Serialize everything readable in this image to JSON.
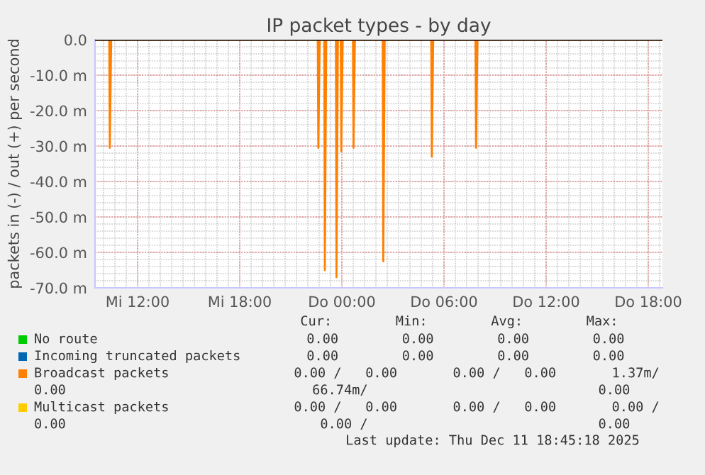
{
  "chart_data": {
    "type": "line",
    "title": "IP packet types - by day",
    "ylabel": "packets in (-) / out (+) per second",
    "xlim": [
      "2025-12-10T09:30",
      "2025-12-11T18:50"
    ],
    "xticks": [
      {
        "value": "2025-12-10T12:00",
        "label": "Mi 12:00"
      },
      {
        "value": "2025-12-10T18:00",
        "label": "Mi 18:00"
      },
      {
        "value": "2025-12-11T00:00",
        "label": "Do 00:00"
      },
      {
        "value": "2025-12-11T06:00",
        "label": "Do 06:00"
      },
      {
        "value": "2025-12-11T12:00",
        "label": "Do 12:00"
      },
      {
        "value": "2025-12-11T18:00",
        "label": "Do 18:00"
      }
    ],
    "ylim": [
      -70,
      0
    ],
    "yticks": [
      {
        "value": 0,
        "label": "0.0"
      },
      {
        "value": -10,
        "label": "-10.0 m"
      },
      {
        "value": -20,
        "label": "-20.0 m"
      },
      {
        "value": -30,
        "label": "-30.0 m"
      },
      {
        "value": -40,
        "label": "-40.0 m"
      },
      {
        "value": -50,
        "label": "-50.0 m"
      },
      {
        "value": -60,
        "label": "-60.0 m"
      },
      {
        "value": -70,
        "label": "-70.0 m"
      }
    ],
    "grid": true,
    "legend": "bottom",
    "ref_lines": [
      {
        "axis": "y",
        "value": 0,
        "color": "#000000"
      }
    ],
    "series": [
      {
        "name": "No route",
        "color": "#00cc00"
      },
      {
        "name": "Incoming truncated packets",
        "color": "#0066b3"
      },
      {
        "name": "Broadcast packets",
        "color": "#ff8000",
        "x": [
          "2025-12-10T09:30",
          "2025-12-10T10:20",
          "2025-12-10T10:22",
          "2025-12-10T10:27",
          "2025-12-10T22:35",
          "2025-12-10T22:37",
          "2025-12-10T22:42",
          "2025-12-10T22:58",
          "2025-12-10T23:00",
          "2025-12-10T23:05",
          "2025-12-10T23:39",
          "2025-12-10T23:41",
          "2025-12-10T23:46",
          "2025-12-10T23:56",
          "2025-12-10T23:58",
          "2025-12-11T00:03",
          "2025-12-11T00:39",
          "2025-12-11T00:41",
          "2025-12-11T00:46",
          "2025-12-11T02:24",
          "2025-12-11T02:26",
          "2025-12-11T02:31",
          "2025-12-11T05:15",
          "2025-12-11T05:17",
          "2025-12-11T05:22",
          "2025-12-11T07:51",
          "2025-12-11T07:53",
          "2025-12-11T07:58",
          "2025-12-11T18:50"
        ],
        "values": [
          0,
          0,
          -30.5,
          0,
          0,
          -30.5,
          0,
          0,
          -65,
          0,
          0,
          -67,
          0,
          0,
          -31.5,
          0,
          0,
          -30.5,
          0,
          0,
          -62.5,
          0,
          0,
          -33,
          0,
          0,
          -30.5,
          0,
          0
        ]
      },
      {
        "name": "Multicast packets",
        "color": "#ffcc00"
      }
    ],
    "annotations": [
      "Cur:        Min:        Avg:        Max:",
      "0.00        0.00        0.00        0.00",
      "0.00        0.00        0.00        0.00",
      "0.00 /   0.00       0.00 /   0.00       1.37m/",
      "0.00                               66.74m/                             0.00",
      "0.00 /   0.00       0.00 /   0.00       0.00 /",
      "0.00                                0.00 /                             0.00",
      "Last update: Thu Dec 11 18:45:18 2025"
    ]
  }
}
